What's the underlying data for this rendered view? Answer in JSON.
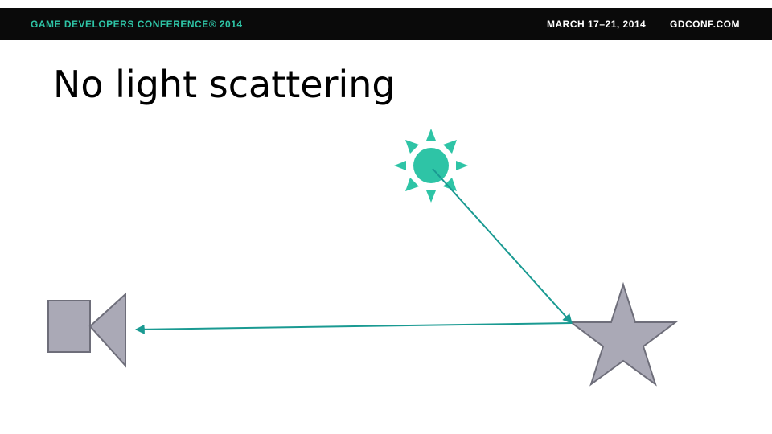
{
  "header": {
    "conference_name": "GAME DEVELOPERS CONFERENCE® 2014",
    "dates": "MARCH 17–21, 2014",
    "website": "GDCONF.COM"
  },
  "slide": {
    "title": "No light scattering"
  },
  "diagram": {
    "icons": [
      "sun-icon",
      "camera-icon",
      "star-icon"
    ],
    "colors": {
      "accent": "#2ec4a6",
      "ray": "#1a9a92",
      "shape_fill": "#aaa9b6",
      "shape_stroke": "#6e6e7a",
      "header_bg": "#0a0a0a"
    }
  }
}
